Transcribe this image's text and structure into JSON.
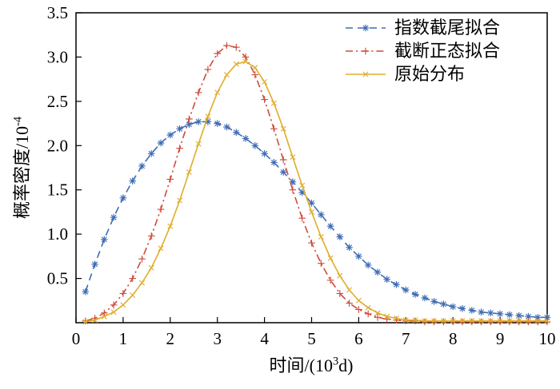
{
  "figure": {
    "background": "#ffffff",
    "axis_color": "#000000",
    "xlabel_parts": {
      "prefix": "时间/(10",
      "sup": "3",
      "suffix": "d)"
    },
    "ylabel_parts": {
      "prefix": "概率密度/10",
      "sup": "-4"
    }
  },
  "chart_data": {
    "type": "line",
    "title": "",
    "xlabel": "时间/(10³d)",
    "ylabel": "概率密度/10⁻⁴",
    "xlim": [
      0,
      10
    ],
    "ylim": [
      0,
      3.5
    ],
    "xticks": [
      "0",
      "1",
      "2",
      "3",
      "4",
      "5",
      "6",
      "7",
      "8",
      "9",
      "10"
    ],
    "yticks": [
      "0.5",
      "1.0",
      "1.5",
      "2.0",
      "2.5",
      "3.0",
      "3.5"
    ],
    "grid": false,
    "legend_position": "top-right-inside",
    "x": [
      0.2,
      0.4,
      0.6,
      0.8,
      1,
      1.2,
      1.4,
      1.6,
      1.8,
      2,
      2.2,
      2.4,
      2.6,
      2.8,
      3,
      3.2,
      3.4,
      3.6,
      3.8,
      4,
      4.2,
      4.4,
      4.6,
      4.8,
      5,
      5.2,
      5.4,
      5.6,
      5.8,
      6,
      6.2,
      6.4,
      6.6,
      6.8,
      7,
      7.2,
      7.4,
      7.6,
      7.8,
      8,
      8.2,
      8.4,
      8.6,
      8.8,
      9,
      9.2,
      9.4,
      9.6,
      9.8,
      10
    ],
    "series": [
      {
        "name": "指数截尾拟合",
        "color": "#3e6db5",
        "line": "dashed",
        "marker": "asterisk",
        "values": [
          0.35,
          0.66,
          0.94,
          1.19,
          1.41,
          1.6,
          1.77,
          1.91,
          2.03,
          2.12,
          2.19,
          2.24,
          2.27,
          2.27,
          2.25,
          2.21,
          2.15,
          2.08,
          2.0,
          1.91,
          1.81,
          1.7,
          1.59,
          1.47,
          1.35,
          1.22,
          1.09,
          0.97,
          0.85,
          0.75,
          0.65,
          0.57,
          0.49,
          0.43,
          0.37,
          0.32,
          0.28,
          0.24,
          0.21,
          0.18,
          0.16,
          0.14,
          0.12,
          0.11,
          0.1,
          0.09,
          0.08,
          0.07,
          0.06,
          0.06
        ]
      },
      {
        "name": "截断正态拟合",
        "color": "#cf4b3c",
        "line": "dashdot",
        "marker": "plus",
        "values": [
          0.02,
          0.05,
          0.11,
          0.2,
          0.33,
          0.5,
          0.72,
          0.98,
          1.28,
          1.62,
          1.97,
          2.3,
          2.6,
          2.86,
          3.04,
          3.13,
          3.11,
          3.0,
          2.8,
          2.52,
          2.19,
          1.84,
          1.5,
          1.18,
          0.9,
          0.67,
          0.48,
          0.33,
          0.22,
          0.15,
          0.1,
          0.06,
          0.04,
          0.03,
          0.02,
          0.02,
          0.01,
          0.01,
          0.01,
          0.01,
          0.01,
          0.01,
          0.01,
          0.01,
          0.01,
          0.01,
          0.01,
          0.01,
          0.01,
          0.01
        ]
      },
      {
        "name": "原始分布",
        "color": "#dfad2b",
        "line": "solid",
        "marker": "x",
        "values": [
          0.01,
          0.03,
          0.07,
          0.12,
          0.2,
          0.31,
          0.45,
          0.62,
          0.84,
          1.09,
          1.38,
          1.7,
          2.02,
          2.33,
          2.6,
          2.8,
          2.92,
          2.95,
          2.88,
          2.72,
          2.48,
          2.19,
          1.87,
          1.55,
          1.25,
          0.97,
          0.73,
          0.53,
          0.37,
          0.25,
          0.17,
          0.11,
          0.07,
          0.05,
          0.03,
          0.03,
          0.02,
          0.02,
          0.02,
          0.02,
          0.02,
          0.02,
          0.02,
          0.02,
          0.02,
          0.02,
          0.02,
          0.02,
          0.02,
          0.02
        ]
      }
    ]
  }
}
